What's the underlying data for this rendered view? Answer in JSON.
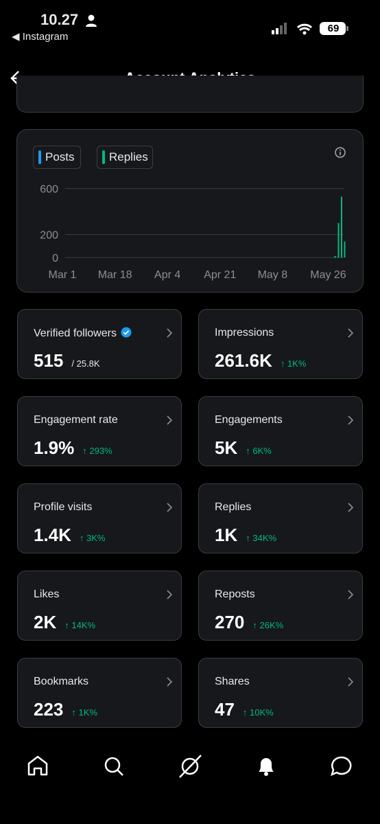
{
  "status": {
    "time": "10.27",
    "back_app": "Instagram",
    "battery": "69"
  },
  "header": {
    "title": "Account Analytics"
  },
  "chart_data": {
    "type": "bar",
    "series": [
      {
        "name": "Posts",
        "color": "#1d9bf0",
        "x": [
          "May 28",
          "May 29"
        ],
        "values": [
          6,
          4
        ]
      },
      {
        "name": "Replies",
        "color": "#00ba7c",
        "x": [
          "May 28",
          "May 29",
          "May 30",
          "May 31"
        ],
        "values": [
          12,
          300,
          530,
          140
        ]
      }
    ],
    "xlim": [
      "Mar 1",
      "May 31"
    ],
    "xticks": [
      "Mar 1",
      "Mar 18",
      "Apr 4",
      "Apr 21",
      "May 8",
      "May 26"
    ],
    "ylim": [
      0,
      640
    ],
    "yticks": [
      0,
      200,
      600
    ],
    "grid": true
  },
  "cards": [
    {
      "label": "Verified followers",
      "value": "515",
      "note": "/ 25.8K",
      "verified": true
    },
    {
      "label": "Impressions",
      "value": "261.6K",
      "change": "↑ 1K%"
    },
    {
      "label": "Engagement rate",
      "value": "1.9%",
      "change": "↑ 293%"
    },
    {
      "label": "Engagements",
      "value": "5K",
      "change": "↑ 6K%"
    },
    {
      "label": "Profile visits",
      "value": "1.4K",
      "change": "↑ 3K%"
    },
    {
      "label": "Replies",
      "value": "1K",
      "change": "↑ 34K%"
    },
    {
      "label": "Likes",
      "value": "2K",
      "change": "↑ 14K%"
    },
    {
      "label": "Reposts",
      "value": "270",
      "change": "↑ 26K%"
    },
    {
      "label": "Bookmarks",
      "value": "223",
      "change": "↑ 1K%"
    },
    {
      "label": "Shares",
      "value": "47",
      "change": "↑ 10K%"
    }
  ]
}
